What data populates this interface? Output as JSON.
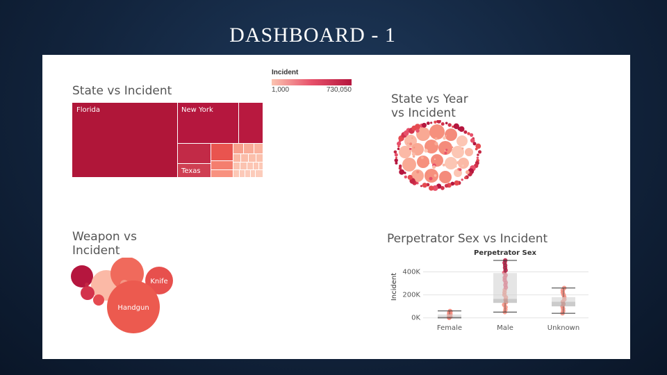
{
  "slide": {
    "title": "DASHBOARD - 1"
  },
  "legend": {
    "title": "Incident",
    "min_label": "1,000",
    "max_label": "730,050",
    "colors": [
      "#fbc3b0",
      "#e7506a",
      "#b5163e"
    ]
  },
  "chart_data": [
    {
      "type": "treemap",
      "title": "State vs Incident",
      "labeled_items": [
        "Florida",
        "New York",
        "Texas"
      ]
    },
    {
      "type": "bubble",
      "title_lines": [
        "State vs Year",
        "vs Incident"
      ]
    },
    {
      "type": "bubble",
      "title_lines": [
        "Weapon vs",
        "Incident"
      ],
      "labeled_items": [
        "Knife",
        "Handgun"
      ]
    },
    {
      "type": "box",
      "title": "Perpetrator Sex vs Incident",
      "subtitle": "Perpetrator Sex",
      "ylabel": "Incident",
      "categories": [
        "Female",
        "Male",
        "Unknown"
      ],
      "ytick_labels": [
        "0K",
        "200K",
        "400K"
      ],
      "ylim": [
        -20000,
        500000
      ],
      "boxes": [
        {
          "category": "Female",
          "min": 0,
          "q1": 5000,
          "median": 15000,
          "q3": 30000,
          "max": 60000
        },
        {
          "category": "Male",
          "min": 50000,
          "q1": 130000,
          "median": 165000,
          "q3": 390000,
          "max": 500000
        },
        {
          "category": "Unknown",
          "min": 40000,
          "q1": 100000,
          "median": 140000,
          "q3": 180000,
          "max": 260000
        }
      ]
    }
  ]
}
